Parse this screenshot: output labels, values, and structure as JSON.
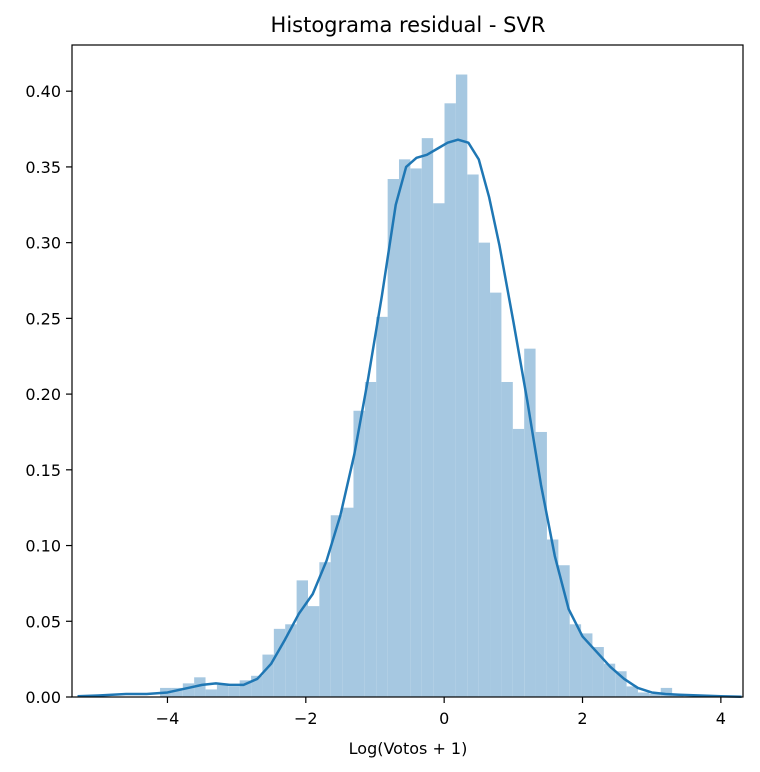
{
  "chart_data": {
    "type": "bar",
    "title": "Histograma residual - SVR",
    "xlabel": "Log(Votos + 1)",
    "ylabel": "",
    "xlim": [
      -5.38,
      4.32
    ],
    "ylim": [
      0,
      0.4305
    ],
    "x_ticks": [
      -4,
      -2,
      0,
      2,
      4
    ],
    "x_tick_labels": [
      "−4",
      "−2",
      "0",
      "2",
      "4"
    ],
    "y_ticks": [
      0.0,
      0.05,
      0.1,
      0.15,
      0.2,
      0.25,
      0.3,
      0.35,
      0.4
    ],
    "y_tick_labels": [
      "0.00",
      "0.05",
      "0.10",
      "0.15",
      "0.20",
      "0.25",
      "0.30",
      "0.35",
      "0.40"
    ],
    "grid": false,
    "legend": "none",
    "bar_color": "#a6c8e1",
    "line_color": "#1f77b4",
    "histogram": {
      "bin_width": 0.1645,
      "bin_left_edges": [
        -4.107,
        -3.943,
        -3.778,
        -3.614,
        -3.449,
        -3.285,
        -3.12,
        -2.956,
        -2.791,
        -2.627,
        -2.462,
        -2.298,
        -2.133,
        -1.969,
        -1.804,
        -1.64,
        -1.475,
        -1.311,
        -1.146,
        -0.982,
        -0.817,
        -0.653,
        -0.488,
        -0.324,
        -0.159,
        0.005,
        0.17,
        0.334,
        0.499,
        0.663,
        0.828,
        0.992,
        1.157,
        1.321,
        1.486,
        1.65,
        1.815,
        1.979,
        2.144,
        2.308,
        2.473,
        2.637,
        2.802,
        2.966,
        3.131,
        3.295
      ],
      "densities": [
        0.006,
        0.006,
        0.009,
        0.013,
        0.005,
        0.008,
        0.007,
        0.011,
        0.014,
        0.028,
        0.045,
        0.048,
        0.077,
        0.06,
        0.089,
        0.12,
        0.125,
        0.189,
        0.208,
        0.251,
        0.342,
        0.355,
        0.349,
        0.369,
        0.326,
        0.392,
        0.411,
        0.345,
        0.3,
        0.267,
        0.208,
        0.177,
        0.23,
        0.175,
        0.104,
        0.087,
        0.048,
        0.042,
        0.033,
        0.022,
        0.017,
        0.007,
        0.003,
        0.002,
        0.006,
        0.002
      ]
    },
    "kde": {
      "x": [
        -5.3,
        -5.0,
        -4.6,
        -4.3,
        -4.0,
        -3.7,
        -3.5,
        -3.3,
        -3.1,
        -2.9,
        -2.7,
        -2.5,
        -2.3,
        -2.1,
        -1.9,
        -1.7,
        -1.5,
        -1.3,
        -1.1,
        -0.9,
        -0.7,
        -0.55,
        -0.4,
        -0.25,
        -0.1,
        0.05,
        0.2,
        0.35,
        0.5,
        0.65,
        0.8,
        1.0,
        1.2,
        1.4,
        1.6,
        1.8,
        2.0,
        2.2,
        2.4,
        2.6,
        2.8,
        3.0,
        3.2,
        3.4,
        3.7,
        4.0,
        4.3
      ],
      "y": [
        0.0005,
        0.001,
        0.002,
        0.002,
        0.003,
        0.006,
        0.008,
        0.009,
        0.008,
        0.008,
        0.012,
        0.022,
        0.038,
        0.055,
        0.068,
        0.09,
        0.12,
        0.16,
        0.21,
        0.265,
        0.325,
        0.35,
        0.356,
        0.358,
        0.362,
        0.366,
        0.368,
        0.366,
        0.355,
        0.33,
        0.298,
        0.248,
        0.196,
        0.14,
        0.093,
        0.058,
        0.04,
        0.03,
        0.02,
        0.012,
        0.006,
        0.003,
        0.002,
        0.0015,
        0.001,
        0.0005,
        0.0002
      ]
    }
  }
}
